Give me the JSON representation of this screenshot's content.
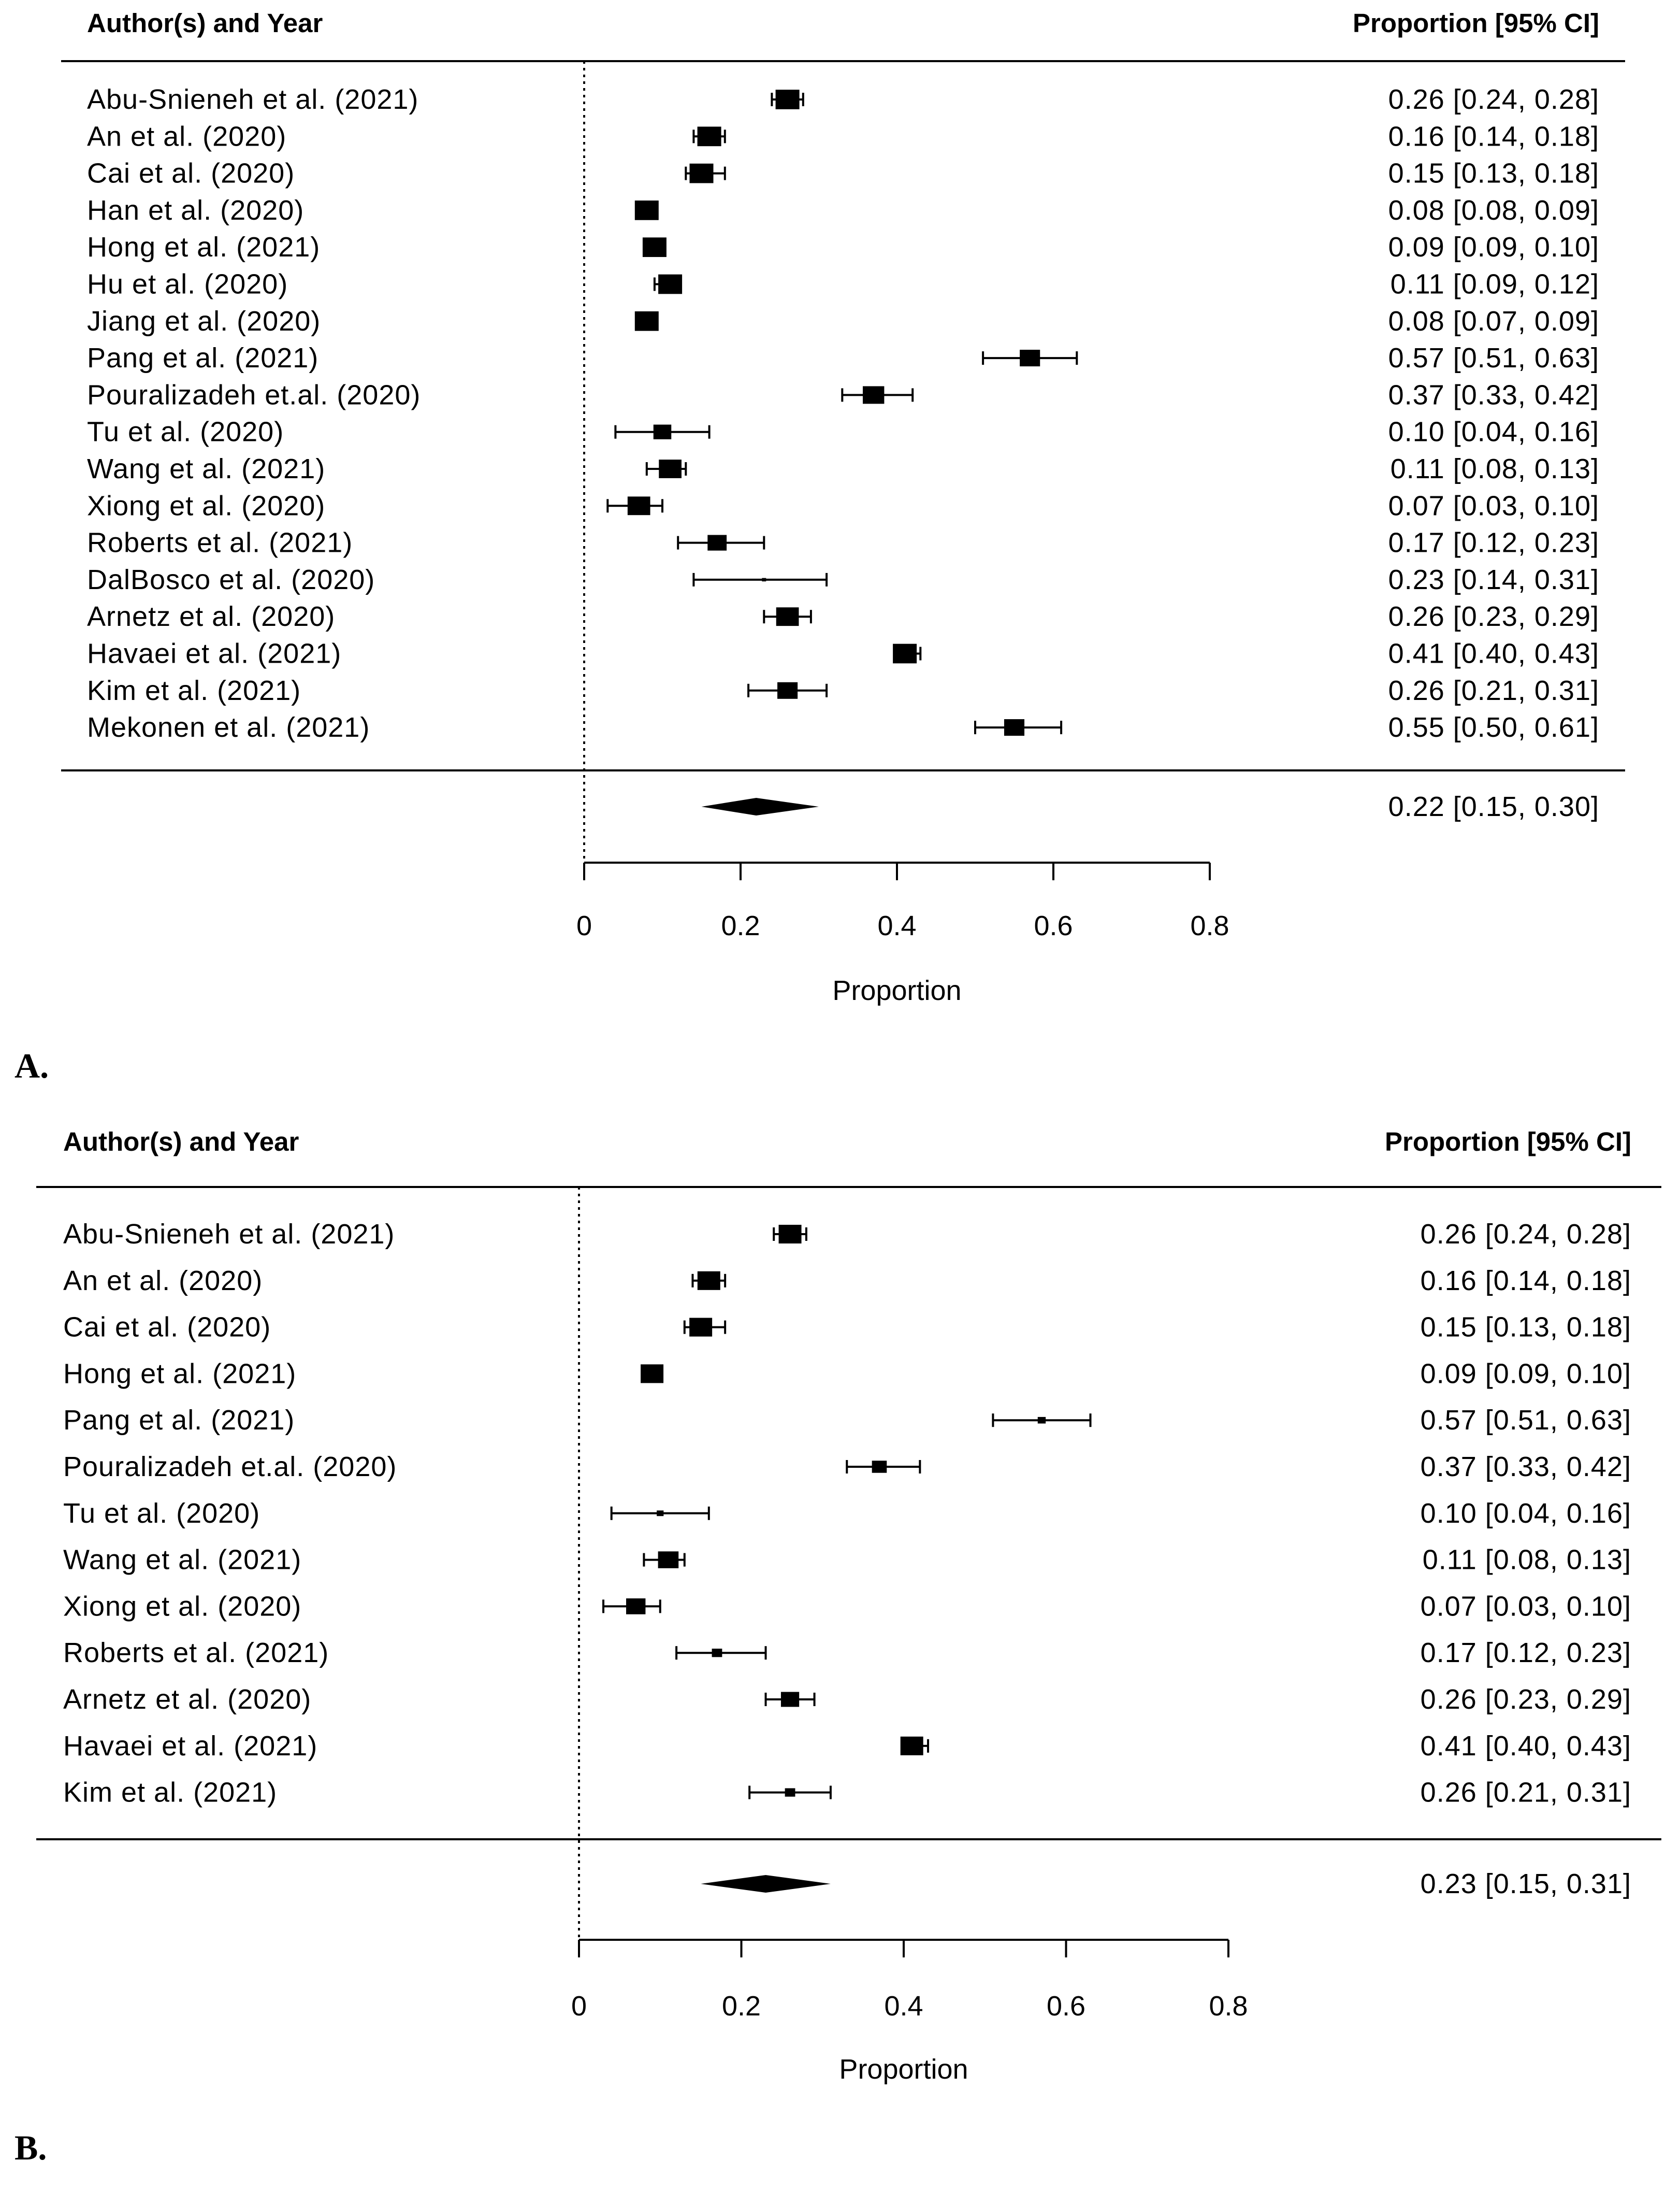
{
  "chart_data": [
    {
      "type": "forest",
      "panel_label": "A.",
      "header_left": "Author(s) and Year",
      "header_right": "Proportion [95% CI]",
      "xlabel": "Proportion",
      "xlim": [
        0,
        0.8
      ],
      "ticks": [
        0,
        0.2,
        0.4,
        0.6,
        0.8
      ],
      "tick_labels": [
        "0",
        "0.2",
        "0.4",
        "0.6",
        "0.8"
      ],
      "reference_line": 0,
      "studies": [
        {
          "label": "Abu-Snieneh et al. (2021)",
          "est": 0.26,
          "lo": 0.24,
          "hi": 0.28,
          "ci_text": "0.26 [0.24, 0.28]",
          "w": 1.0
        },
        {
          "label": "An et al.  (2020)",
          "est": 0.16,
          "lo": 0.14,
          "hi": 0.18,
          "ci_text": "0.16 [0.14, 0.18]",
          "w": 1.0
        },
        {
          "label": "Cai et al. (2020)",
          "est": 0.15,
          "lo": 0.13,
          "hi": 0.18,
          "ci_text": "0.15 [0.13, 0.18]",
          "w": 1.0
        },
        {
          "label": "Han et al.  (2020)",
          "est": 0.08,
          "lo": 0.08,
          "hi": 0.09,
          "ci_text": "0.08 [0.08, 0.09]",
          "w": 1.0
        },
        {
          "label": "Hong et al.  (2021)",
          "est": 0.09,
          "lo": 0.09,
          "hi": 0.1,
          "ci_text": "0.09 [0.09, 0.10]",
          "w": 1.0
        },
        {
          "label": "Hu et al.  (2020)",
          "est": 0.11,
          "lo": 0.09,
          "hi": 0.12,
          "ci_text": "0.11 [0.09, 0.12]",
          "w": 1.0
        },
        {
          "label": "Jiang et al.  (2020)",
          "est": 0.08,
          "lo": 0.07,
          "hi": 0.09,
          "ci_text": "0.08 [0.07, 0.09]",
          "w": 1.0
        },
        {
          "label": "Pang et al.  (2021)",
          "est": 0.57,
          "lo": 0.51,
          "hi": 0.63,
          "ci_text": "0.57 [0.51, 0.63]",
          "w": 0.85
        },
        {
          "label": "Pouralizadeh et.al.  (2020)",
          "est": 0.37,
          "lo": 0.33,
          "hi": 0.42,
          "ci_text": "0.37 [0.33, 0.42]",
          "w": 0.9
        },
        {
          "label": "Tu et al.  (2020)",
          "est": 0.1,
          "lo": 0.04,
          "hi": 0.16,
          "ci_text": "0.10 [0.04, 0.16]",
          "w": 0.75
        },
        {
          "label": "Wang et al.  (2021)",
          "est": 0.11,
          "lo": 0.08,
          "hi": 0.13,
          "ci_text": "0.11 [0.08, 0.13]",
          "w": 0.95
        },
        {
          "label": "Xiong et al.  (2020)",
          "est": 0.07,
          "lo": 0.03,
          "hi": 0.1,
          "ci_text": "0.07 [0.03, 0.10]",
          "w": 0.95
        },
        {
          "label": "Roberts et al.  (2021)",
          "est": 0.17,
          "lo": 0.12,
          "hi": 0.23,
          "ci_text": "0.17 [0.12, 0.23]",
          "w": 0.8
        },
        {
          "label": "DalBosco et al.  (2020)",
          "est": 0.23,
          "lo": 0.14,
          "hi": 0.31,
          "ci_text": "0.23 [0.14, 0.31]",
          "w": 0.15
        },
        {
          "label": "Arnetz et al.  (2020)",
          "est": 0.26,
          "lo": 0.23,
          "hi": 0.29,
          "ci_text": "0.26 [0.23, 0.29]",
          "w": 0.95
        },
        {
          "label": "Havaei et al.  (2021)",
          "est": 0.41,
          "lo": 0.4,
          "hi": 0.43,
          "ci_text": "0.41 [0.40, 0.43]",
          "w": 1.0
        },
        {
          "label": "Kim et al.  (2021)",
          "est": 0.26,
          "lo": 0.21,
          "hi": 0.31,
          "ci_text": "0.26 [0.21, 0.31]",
          "w": 0.85
        },
        {
          "label": "Mekonen et al.  (2021)",
          "est": 0.55,
          "lo": 0.5,
          "hi": 0.61,
          "ci_text": "0.55 [0.50, 0.61]",
          "w": 0.85
        }
      ],
      "summary": {
        "est": 0.22,
        "lo": 0.15,
        "hi": 0.3,
        "ci_text": "0.22 [0.15, 0.30]"
      }
    },
    {
      "type": "forest",
      "panel_label": "B.",
      "header_left": "Author(s) and Year",
      "header_right": "Proportion [95% CI]",
      "xlabel": "Proportion",
      "xlim": [
        0,
        0.8
      ],
      "ticks": [
        0,
        0.2,
        0.4,
        0.6,
        0.8
      ],
      "tick_labels": [
        "0",
        "0.2",
        "0.4",
        "0.6",
        "0.8"
      ],
      "reference_line": 0,
      "studies": [
        {
          "label": "Abu-Snieneh et al. (2021)",
          "est": 0.26,
          "lo": 0.24,
          "hi": 0.28,
          "ci_text": "0.26 [0.24, 0.28]",
          "w": 1.0
        },
        {
          "label": "An et al.  (2020)",
          "est": 0.16,
          "lo": 0.14,
          "hi": 0.18,
          "ci_text": "0.16 [0.14, 0.18]",
          "w": 1.0
        },
        {
          "label": "Cai et al. (2020)",
          "est": 0.15,
          "lo": 0.13,
          "hi": 0.18,
          "ci_text": "0.15 [0.13, 0.18]",
          "w": 1.0
        },
        {
          "label": "Hong et al.  (2021)",
          "est": 0.09,
          "lo": 0.09,
          "hi": 0.1,
          "ci_text": "0.09 [0.09, 0.10]",
          "w": 1.0
        },
        {
          "label": "Pang et al.  (2021)",
          "est": 0.57,
          "lo": 0.51,
          "hi": 0.63,
          "ci_text": "0.57 [0.51, 0.63]",
          "w": 0.35
        },
        {
          "label": "Pouralizadeh et.al.  (2020)",
          "est": 0.37,
          "lo": 0.33,
          "hi": 0.42,
          "ci_text": "0.37 [0.33, 0.42]",
          "w": 0.65
        },
        {
          "label": "Tu et al.  (2020)",
          "est": 0.1,
          "lo": 0.04,
          "hi": 0.16,
          "ci_text": "0.10 [0.04, 0.16]",
          "w": 0.3
        },
        {
          "label": "Wang et al.  (2021)",
          "est": 0.11,
          "lo": 0.08,
          "hi": 0.13,
          "ci_text": "0.11 [0.08, 0.13]",
          "w": 0.9
        },
        {
          "label": "Xiong et al.  (2020)",
          "est": 0.07,
          "lo": 0.03,
          "hi": 0.1,
          "ci_text": "0.07 [0.03, 0.10]",
          "w": 0.85
        },
        {
          "label": "Roberts et al.  (2021)",
          "est": 0.17,
          "lo": 0.12,
          "hi": 0.23,
          "ci_text": "0.17 [0.12, 0.23]",
          "w": 0.45
        },
        {
          "label": "Arnetz et al.  (2020)",
          "est": 0.26,
          "lo": 0.23,
          "hi": 0.29,
          "ci_text": "0.26 [0.23, 0.29]",
          "w": 0.8
        },
        {
          "label": "Havaei et al.  (2021)",
          "est": 0.41,
          "lo": 0.4,
          "hi": 0.43,
          "ci_text": "0.41 [0.40, 0.43]",
          "w": 1.0
        },
        {
          "label": "Kim et al.  (2021)",
          "est": 0.26,
          "lo": 0.21,
          "hi": 0.31,
          "ci_text": "0.26 [0.21, 0.31]",
          "w": 0.45
        }
      ],
      "summary": {
        "est": 0.23,
        "lo": 0.15,
        "hi": 0.31,
        "ci_text": "0.23 [0.15, 0.31]"
      }
    }
  ]
}
